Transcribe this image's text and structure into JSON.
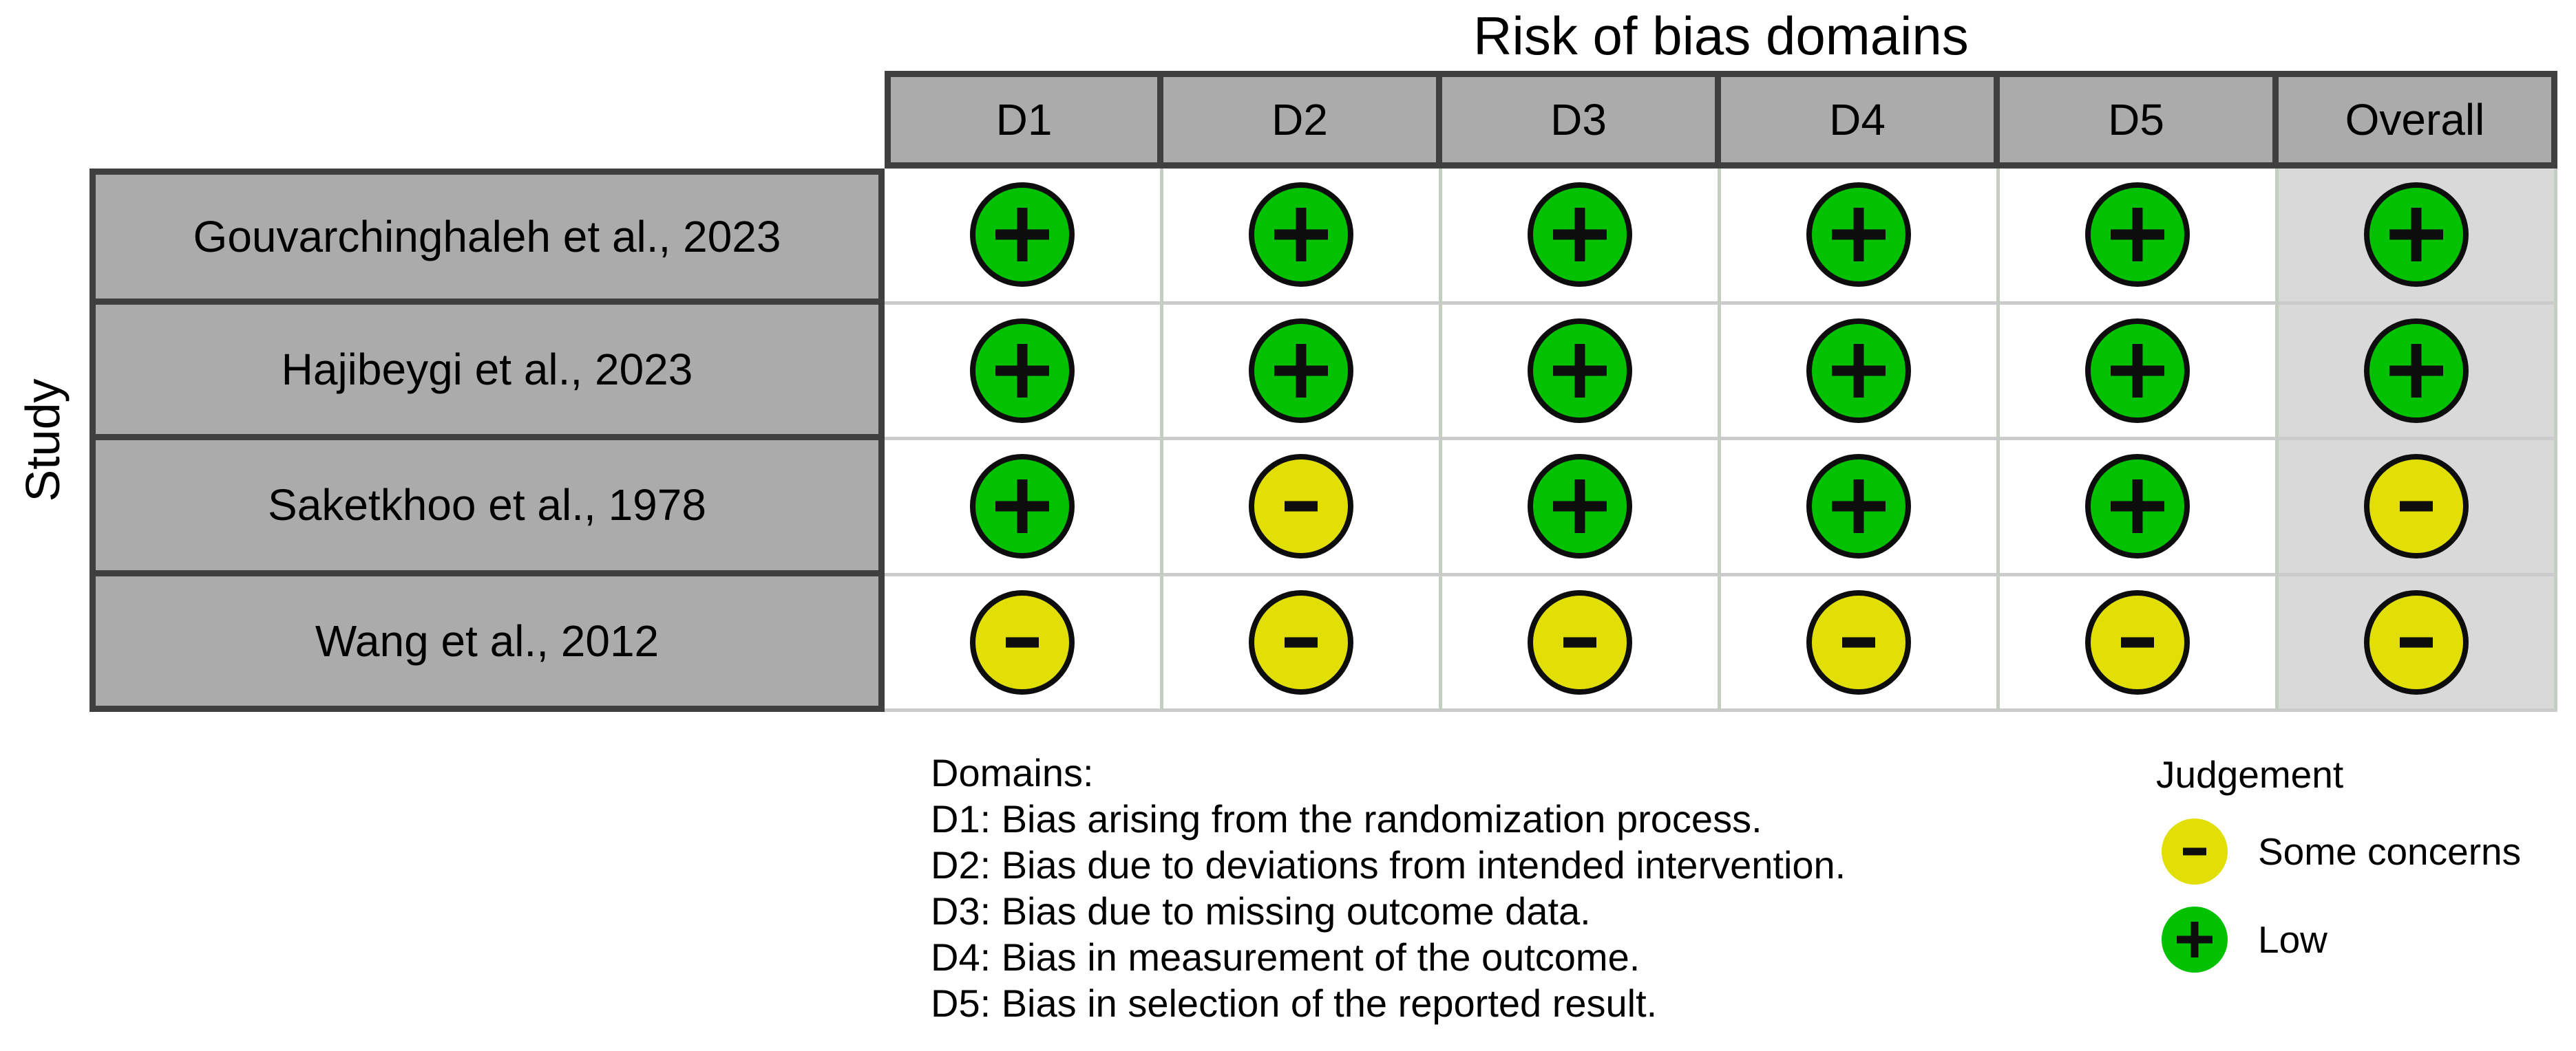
{
  "title": "Risk of bias domains",
  "y_axis_label": "Study",
  "chart_data": {
    "type": "table",
    "title": "Risk of bias domains",
    "ylabel": "Study",
    "columns": [
      "D1",
      "D2",
      "D3",
      "D4",
      "D5",
      "Overall"
    ],
    "rows": [
      "Gouvarchinghaleh et al., 2023",
      "Hajibeygi et al., 2023",
      "Saketkhoo et al., 1978",
      "Wang et al., 2012"
    ],
    "values": [
      [
        "Low",
        "Low",
        "Low",
        "Low",
        "Low",
        "Low"
      ],
      [
        "Low",
        "Low",
        "Low",
        "Low",
        "Low",
        "Low"
      ],
      [
        "Low",
        "Some concerns",
        "Low",
        "Low",
        "Low",
        "Some concerns"
      ],
      [
        "Some concerns",
        "Some concerns",
        "Some concerns",
        "Some concerns",
        "Some concerns",
        "Some concerns"
      ]
    ],
    "legend_position": "bottom-right",
    "grid": "off"
  },
  "domains_legend": {
    "heading": "Domains:",
    "items": [
      "D1: Bias arising from the randomization process.",
      "D2: Bias due to deviations from intended intervention.",
      "D3: Bias due to missing outcome data.",
      "D4: Bias in measurement of the outcome.",
      "D5: Bias in selection of the reported result."
    ]
  },
  "judgement_legend": {
    "heading": "Judgement",
    "items": [
      {
        "label": "Some concerns",
        "symbol": "minus",
        "color": "#E2DF07"
      },
      {
        "label": "Low",
        "symbol": "plus",
        "color": "#02C100"
      }
    ]
  },
  "colors": {
    "low": "#02C100",
    "some_concerns": "#E2DF07",
    "header_fill": "#ABABAB",
    "study_fill": "#ABABAB",
    "overall_fill": "#D9D9D9",
    "dark_border": "#3F3F3F",
    "grid_line": "#C3CEC0"
  }
}
